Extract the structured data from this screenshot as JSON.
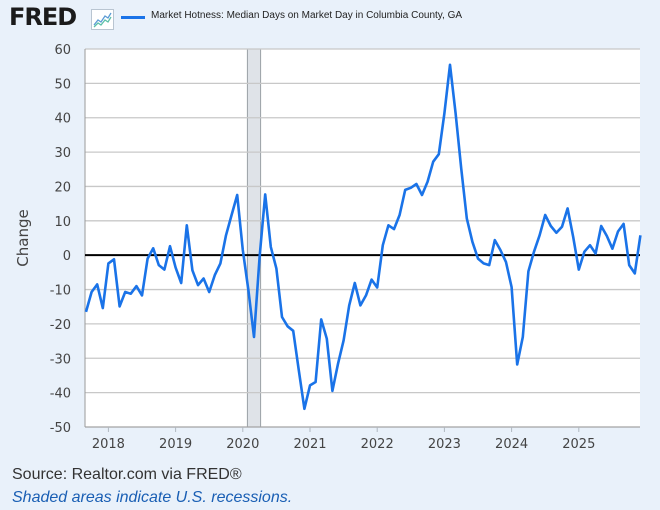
{
  "header": {
    "logo": "FRED",
    "logo_icon": "line-chart-icon",
    "legend_label": "Market Hotness: Median Days on Market Day in Columbia County, GA",
    "legend_color": "#1a73e8"
  },
  "footer": {
    "source": "Source: Realtor.com via FRED®",
    "recession_note": "Shaded areas indicate U.S. recessions."
  },
  "chart_data": {
    "type": "line",
    "title": "Market Hotness: Median Days on Market Day in Columbia County, GA",
    "xlabel": "",
    "ylabel": "Change",
    "ylim": [
      -50,
      60
    ],
    "yticks": [
      60,
      50,
      40,
      30,
      20,
      10,
      0,
      -10,
      -20,
      -30,
      -40,
      -50
    ],
    "xticks": [
      "2018",
      "2019",
      "2020",
      "2021",
      "2022",
      "2023",
      "2024",
      "2025"
    ],
    "grid": true,
    "zero_line": true,
    "start": "2017-09",
    "frequency": "monthly",
    "recession_shading": [
      {
        "start": "2020-02",
        "end": "2020-04"
      }
    ],
    "series": [
      {
        "name": "Market Hotness: Median Days on Market Day in Columbia County, GA",
        "color": "#1a73e8",
        "values": [
          -16.5,
          -10.7,
          -8.5,
          -15.4,
          -2.4,
          -1.2,
          -14.9,
          -10.7,
          -11.2,
          -9,
          -11.7,
          -1,
          2,
          -2.9,
          -4.2,
          2.6,
          -3.6,
          -8.1,
          8.7,
          -4.4,
          -8.7,
          -6.8,
          -10.7,
          -5.8,
          -2.4,
          5.8,
          11.7,
          17.5,
          1.5,
          -10.2,
          -23.8,
          -0.5,
          17.7,
          2.4,
          -3.9,
          -18,
          -20.7,
          -22,
          -33.5,
          -44.7,
          -37.9,
          -36.9,
          -18.7,
          -24.3,
          -39.5,
          -31.6,
          -24.8,
          -14.6,
          -8.1,
          -14.6,
          -11.7,
          -7.1,
          -9.4,
          2.9,
          8.7,
          7.6,
          11.7,
          19,
          19.6,
          20.7,
          17.5,
          21.4,
          27.2,
          29.4,
          41.3,
          55.4,
          41.3,
          25.3,
          10.7,
          3.9,
          -1,
          -2.4,
          -2.9,
          4.4,
          1.5,
          -2,
          -9.3,
          -31.8,
          -23.8,
          -4.7,
          1,
          5.8,
          11.7,
          8.5,
          6.5,
          8.3,
          13.6,
          5.3,
          -4.2,
          1,
          2.9,
          0.5,
          8.5,
          5.6,
          1.9,
          6.9,
          9.1,
          -2.9,
          -5.3,
          5.8
        ]
      }
    ]
  }
}
